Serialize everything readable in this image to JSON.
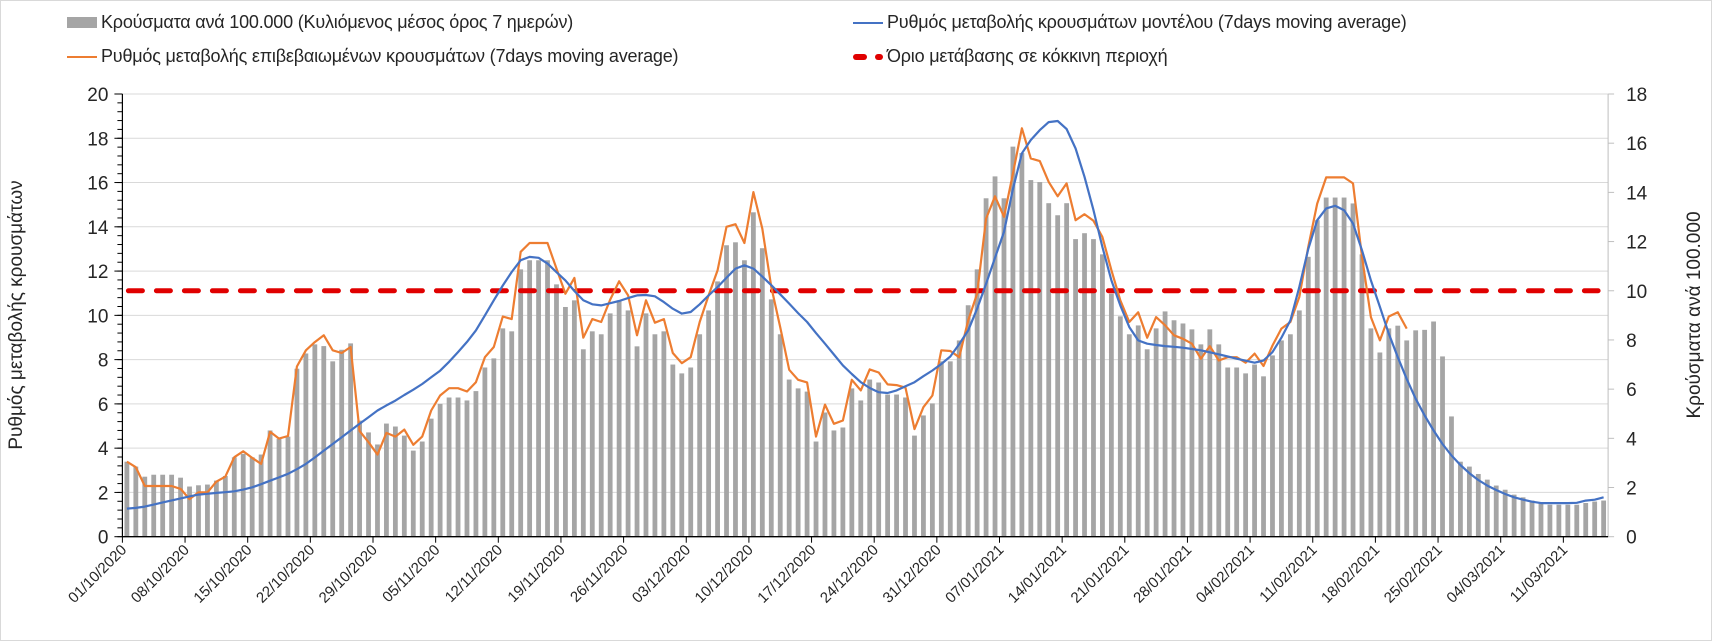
{
  "chart_data": {
    "type": "bar+line",
    "title": "",
    "legend": {
      "placement": "top",
      "bars": "Κρούσματα ανά 100.000 (Κυλιόμενος μέσος όρος 7 ημερών)",
      "model": "Ρυθμός μεταβολής κρουσμάτων μοντέλου (7days moving average)",
      "confirmed": "Ρυθμός μεταβολής επιβεβαιωμένων κρουσμάτων (7days moving average)",
      "threshold": "Όριο μετάβασης σε κόκκινη περιοχή"
    },
    "ylabel_left": "Ρυθμός μεταβολής κρουσμάτων",
    "ylabel_right": "Κρούσματα ανά 100.000",
    "ylim_left": [
      0,
      20
    ],
    "ylim_right": [
      0,
      18
    ],
    "y_left_ticks": [
      "0",
      "2",
      "4",
      "6",
      "8",
      "10",
      "12",
      "14",
      "16",
      "18",
      "20"
    ],
    "y_right_ticks": [
      "0",
      "2",
      "4",
      "6",
      "8",
      "10",
      "12",
      "14",
      "16",
      "18"
    ],
    "x_start": "01/10/2020",
    "x_frequency": "daily",
    "x_count": 166,
    "x_tick_every_days": 7,
    "x_tick_labels": [
      "01/10/2020",
      "08/10/2020",
      "15/10/2020",
      "22/10/2020",
      "29/10/2020",
      "05/11/2020",
      "12/11/2020",
      "19/11/2020",
      "26/11/2020",
      "03/12/2020",
      "10/12/2020",
      "17/12/2020",
      "24/12/2020",
      "31/12/2020",
      "07/01/2021",
      "14/01/2021",
      "21/01/2021",
      "28/01/2021",
      "04/02/2021",
      "11/02/2021",
      "18/02/2021",
      "25/02/2021",
      "04/03/2021",
      "11/03/2021"
    ],
    "grid": true,
    "threshold_right_axis": 10,
    "colors": {
      "bars": "#a5a5a5",
      "model": "#4472c4",
      "confirmed": "#ed7d31",
      "threshold": "#e00000"
    },
    "series": [
      {
        "name": "Κρούσματα ανά 100.000 (Κυλιόμενος μέσος όρος 7 ημερών)",
        "kind": "bar",
        "axis": "right",
        "values": [
          3.05,
          2.85,
          2.44,
          2.52,
          2.52,
          2.52,
          2.4,
          2.04,
          2.09,
          2.12,
          2.28,
          2.47,
          3.23,
          3.37,
          3.23,
          3.34,
          4.32,
          3.98,
          4.07,
          6.83,
          7.45,
          7.82,
          7.75,
          7.13,
          7.6,
          7.86,
          4.72,
          4.24,
          3.75,
          4.6,
          4.48,
          4.11,
          3.5,
          3.87,
          4.8,
          5.4,
          5.66,
          5.66,
          5.54,
          5.92,
          6.88,
          7.25,
          8.47,
          8.35,
          10.87,
          11.24,
          11.24,
          11.24,
          10.26,
          9.34,
          9.61,
          7.62,
          8.35,
          8.23,
          9.08,
          9.61,
          9.2,
          7.74,
          9.08,
          8.23,
          8.35,
          7.0,
          6.64,
          6.88,
          8.23,
          9.2,
          10.38,
          11.85,
          11.97,
          11.24,
          13.19,
          11.73,
          9.65,
          8.23,
          6.39,
          6.03,
          5.9,
          3.87,
          5.05,
          4.32,
          4.44,
          6.03,
          5.54,
          6.39,
          6.27,
          5.78,
          5.78,
          5.66,
          4.11,
          4.93,
          5.42,
          7.13,
          7.13,
          7.98,
          9.41,
          10.87,
          13.76,
          14.65,
          13.76,
          15.86,
          15.6,
          14.5,
          14.42,
          13.56,
          13.07,
          13.56,
          12.1,
          12.34,
          12.1,
          11.48,
          9.88,
          8.96,
          8.23,
          8.59,
          7.62,
          8.47,
          9.16,
          8.8,
          8.67,
          8.43,
          7.82,
          8.43,
          7.82,
          6.88,
          6.88,
          6.64,
          7.0,
          6.52,
          7.37,
          7.98,
          8.23,
          9.2,
          11.38,
          12.87,
          13.79,
          13.79,
          13.79,
          13.55,
          11.48,
          8.47,
          7.49,
          8.47,
          8.58,
          7.98,
          8.39,
          8.41,
          8.75,
          7.33,
          4.89,
          3.05,
          2.85,
          2.55,
          2.32,
          2.08,
          1.91,
          1.71,
          1.6,
          1.47,
          1.4,
          1.3,
          1.3,
          1.3,
          1.3,
          1.37,
          1.43,
          1.47
        ]
      },
      {
        "name": "Ρυθμός μεταβολής κρουσμάτων μοντέλου (7days moving average)",
        "kind": "line",
        "axis": "left",
        "values": [
          1.27,
          1.3,
          1.36,
          1.45,
          1.55,
          1.64,
          1.73,
          1.82,
          1.9,
          1.94,
          1.98,
          2.01,
          2.05,
          2.13,
          2.23,
          2.37,
          2.53,
          2.68,
          2.84,
          3.05,
          3.29,
          3.58,
          3.89,
          4.19,
          4.49,
          4.8,
          5.1,
          5.4,
          5.7,
          5.93,
          6.15,
          6.4,
          6.64,
          6.9,
          7.2,
          7.5,
          7.9,
          8.34,
          8.8,
          9.32,
          10.0,
          10.68,
          11.35,
          11.96,
          12.49,
          12.64,
          12.6,
          12.34,
          11.95,
          11.58,
          11.1,
          10.68,
          10.5,
          10.45,
          10.55,
          10.65,
          10.78,
          10.9,
          10.92,
          10.86,
          10.6,
          10.3,
          10.08,
          10.15,
          10.5,
          10.9,
          11.28,
          11.7,
          12.11,
          12.26,
          12.11,
          11.75,
          11.36,
          10.95,
          10.53,
          10.1,
          9.7,
          9.2,
          8.72,
          8.23,
          7.74,
          7.35,
          6.98,
          6.72,
          6.53,
          6.49,
          6.61,
          6.8,
          6.98,
          7.25,
          7.51,
          7.8,
          8.14,
          8.7,
          9.32,
          10.3,
          11.43,
          12.6,
          13.77,
          15.7,
          17.32,
          17.92,
          18.37,
          18.73,
          18.78,
          18.42,
          17.54,
          16.26,
          14.75,
          13.09,
          11.58,
          10.45,
          9.47,
          8.87,
          8.72,
          8.66,
          8.61,
          8.58,
          8.54,
          8.48,
          8.42,
          8.33,
          8.24,
          8.14,
          8.04,
          7.95,
          7.86,
          7.96,
          8.34,
          8.99,
          9.77,
          11.28,
          13.0,
          14.3,
          14.83,
          14.95,
          14.75,
          14.15,
          12.94,
          11.58,
          10.38,
          9.17,
          8.11,
          7.13,
          6.23,
          5.48,
          4.8,
          4.19,
          3.67,
          3.24,
          2.87,
          2.56,
          2.31,
          2.11,
          1.93,
          1.78,
          1.67,
          1.58,
          1.52,
          1.52,
          1.52,
          1.52,
          1.53,
          1.63,
          1.67,
          1.78
        ]
      },
      {
        "name": "Ρυθμός μεταβολής επιβεβαιωμένων κρουσμάτων (7days moving average)",
        "kind": "line",
        "axis": "left",
        "values": [
          3.39,
          3.14,
          2.29,
          2.29,
          2.29,
          2.29,
          2.16,
          1.7,
          2.0,
          2.0,
          2.49,
          2.71,
          3.59,
          3.86,
          3.56,
          3.29,
          4.74,
          4.43,
          4.55,
          7.69,
          8.42,
          8.79,
          9.1,
          8.42,
          8.3,
          8.57,
          4.77,
          4.27,
          3.71,
          4.69,
          4.52,
          4.84,
          4.15,
          4.52,
          5.7,
          6.38,
          6.71,
          6.71,
          6.56,
          6.98,
          8.11,
          8.57,
          9.95,
          9.83,
          12.87,
          13.27,
          13.27,
          13.27,
          12.11,
          10.98,
          11.69,
          8.99,
          9.83,
          9.7,
          10.71,
          11.54,
          10.9,
          9.1,
          10.68,
          9.67,
          9.83,
          8.3,
          7.84,
          8.11,
          9.7,
          10.9,
          12.04,
          14.0,
          14.12,
          13.27,
          15.57,
          13.92,
          11.28,
          9.47,
          7.54,
          7.09,
          6.97,
          4.52,
          5.97,
          5.1,
          5.25,
          7.09,
          6.61,
          7.56,
          7.42,
          6.88,
          6.85,
          6.73,
          4.86,
          5.85,
          6.38,
          8.42,
          8.39,
          8.11,
          9.77,
          10.98,
          14.37,
          15.38,
          14.45,
          16.4,
          18.45,
          17.09,
          16.97,
          16.03,
          15.38,
          15.96,
          14.3,
          14.57,
          14.27,
          13.54,
          12.04,
          10.68,
          9.7,
          10.14,
          8.99,
          9.92,
          9.55,
          9.1,
          8.94,
          8.72,
          8.04,
          8.61,
          7.96,
          8.11,
          8.11,
          7.86,
          8.27,
          7.71,
          8.64,
          9.4,
          9.7,
          10.83,
          13.1,
          15.05,
          16.23,
          16.23,
          16.23,
          15.96,
          12.64,
          9.92,
          8.87,
          9.95,
          10.14,
          9.4
        ]
      }
    ]
  }
}
